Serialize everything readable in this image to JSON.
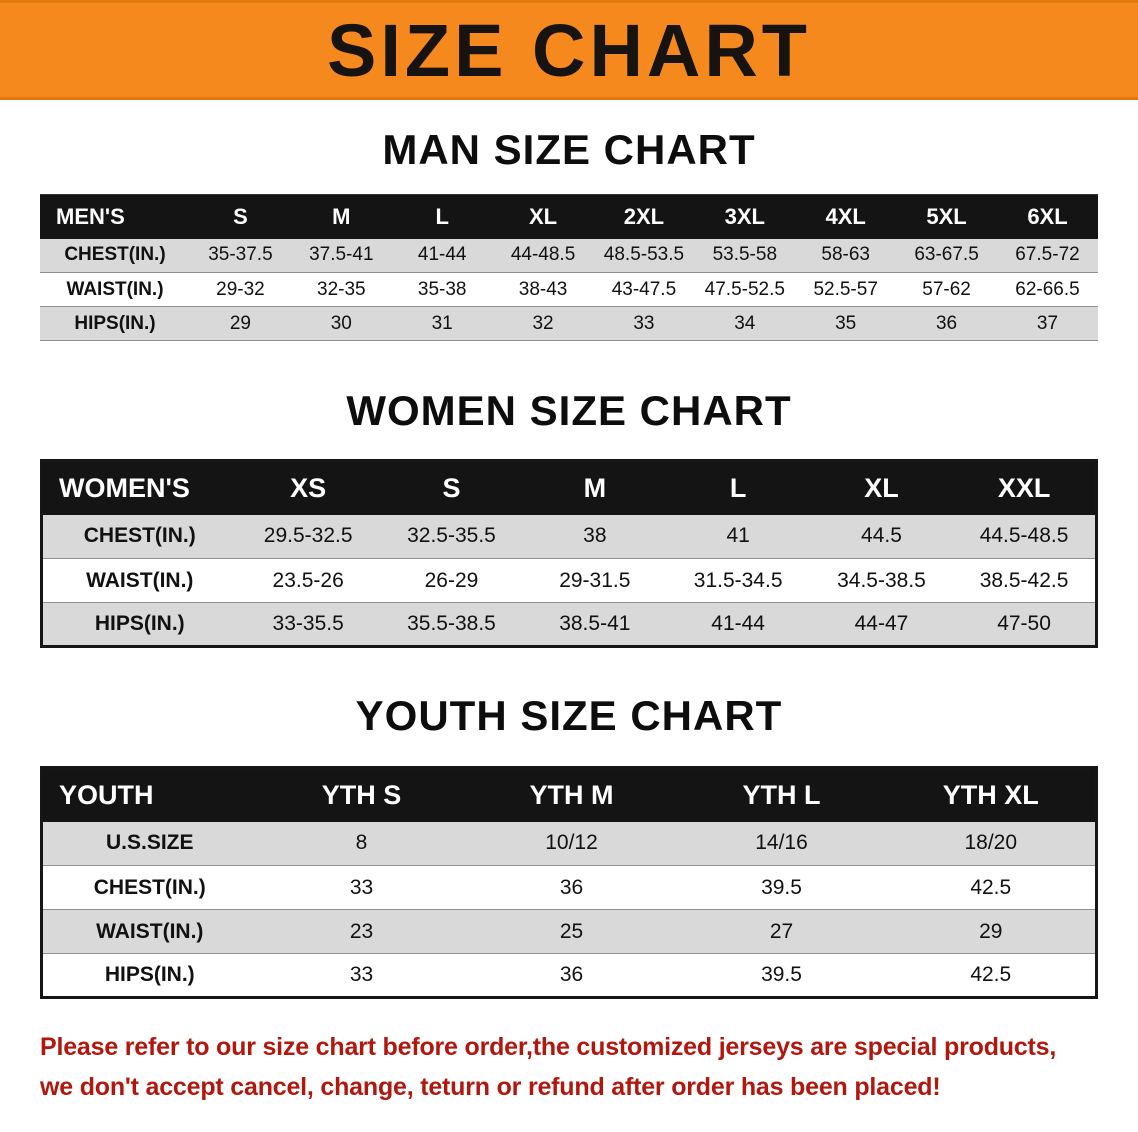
{
  "banner": {
    "title": "SIZE CHART"
  },
  "colors": {
    "banner_bg": "#f6891e",
    "header_bg": "#141414",
    "stripe": "#d9d9d9",
    "footer_text": "#b2170e"
  },
  "tables": {
    "men": {
      "heading": "MAN SIZE CHART",
      "header": [
        "MEN'S",
        "S",
        "M",
        "L",
        "XL",
        "2XL",
        "3XL",
        "4XL",
        "5XL",
        "6XL"
      ],
      "rows": [
        [
          "CHEST(IN.)",
          "35-37.5",
          "37.5-41",
          "41-44",
          "44-48.5",
          "48.5-53.5",
          "53.5-58",
          "58-63",
          "63-67.5",
          "67.5-72"
        ],
        [
          "WAIST(IN.)",
          "29-32",
          "32-35",
          "35-38",
          "38-43",
          "43-47.5",
          "47.5-52.5",
          "52.5-57",
          "57-62",
          "62-66.5"
        ],
        [
          "HIPS(IN.)",
          "29",
          "30",
          "31",
          "32",
          "33",
          "34",
          "35",
          "36",
          "37"
        ]
      ]
    },
    "women": {
      "heading": "WOMEN SIZE CHART",
      "header": [
        "WOMEN'S",
        "XS",
        "S",
        "M",
        "L",
        "XL",
        "XXL"
      ],
      "rows": [
        [
          "CHEST(IN.)",
          "29.5-32.5",
          "32.5-35.5",
          "38",
          "41",
          "44.5",
          "44.5-48.5"
        ],
        [
          "WAIST(IN.)",
          "23.5-26",
          "26-29",
          "29-31.5",
          "31.5-34.5",
          "34.5-38.5",
          "38.5-42.5"
        ],
        [
          "HIPS(IN.)",
          "33-35.5",
          "35.5-38.5",
          "38.5-41",
          "41-44",
          "44-47",
          "47-50"
        ]
      ]
    },
    "youth": {
      "heading": "YOUTH SIZE CHART",
      "header": [
        "YOUTH",
        "YTH S",
        "YTH M",
        "YTH L",
        "YTH XL"
      ],
      "rows": [
        [
          "U.S.SIZE",
          "8",
          "10/12",
          "14/16",
          "18/20"
        ],
        [
          "CHEST(IN.)",
          "33",
          "36",
          "39.5",
          "42.5"
        ],
        [
          "WAIST(IN.)",
          "23",
          "25",
          "27",
          "29"
        ],
        [
          "HIPS(IN.)",
          "33",
          "36",
          "39.5",
          "42.5"
        ]
      ]
    }
  },
  "footer": {
    "line1": "Please refer to our size chart before order,the customized jerseys are special products,",
    "line2": "we don't accept cancel, change, teturn or refund after order has been placed!"
  }
}
